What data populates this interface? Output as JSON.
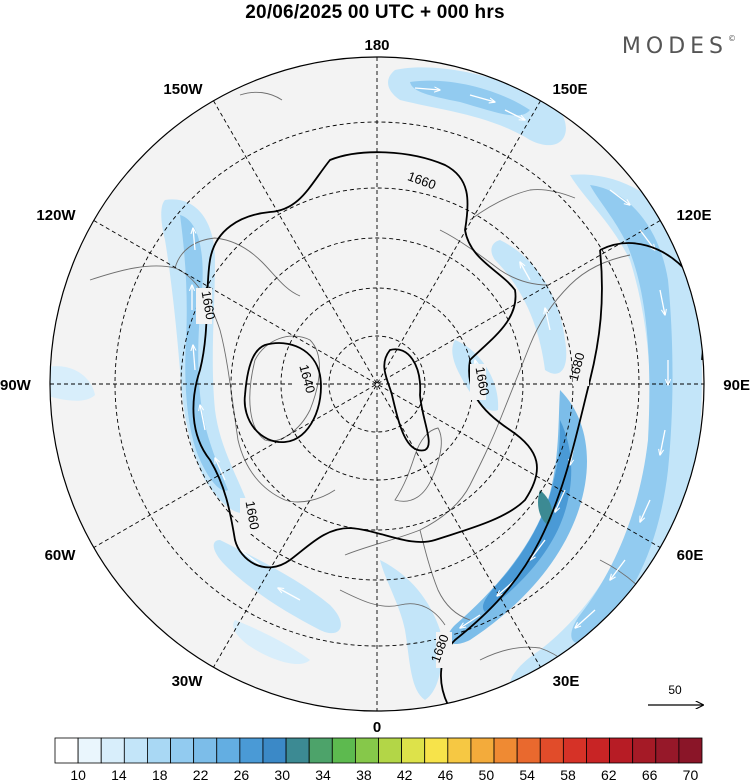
{
  "title": "20/06/2025  00 UTC  + 000 hrs",
  "brand": "MODES",
  "brand_mark": "©",
  "longitude_labels": {
    "top": "180",
    "bottom": "0",
    "left": "90W",
    "right": "90E",
    "upper_left": "150W",
    "upper_left_mid": "120W",
    "upper_right": "150E",
    "upper_right_mid": "120E",
    "lower_left": "60W",
    "lower_left_far": "30W",
    "lower_right": "60E",
    "lower_right_far": "30E"
  },
  "contour_labels": [
    "1660",
    "1660",
    "1640",
    "1660",
    "1660",
    "1680",
    "1680",
    "1660"
  ],
  "vector_scale_label": "50",
  "colorbar": {
    "ticks": [
      "10",
      "14",
      "18",
      "22",
      "26",
      "30",
      "34",
      "38",
      "42",
      "46",
      "50",
      "54",
      "58",
      "62",
      "66",
      "70"
    ],
    "colors": [
      "#ffffff",
      "#eaf6fd",
      "#d8eefb",
      "#c3e5f9",
      "#a9d8f4",
      "#92cbf0",
      "#7cbde9",
      "#63aee2",
      "#4a9ad6",
      "#3b89c7",
      "#3c8a93",
      "#4da36a",
      "#5dba4f",
      "#86c84a",
      "#b3d647",
      "#dde24a",
      "#f7e34a",
      "#f6c843",
      "#f3ab3b",
      "#ef8a33",
      "#e9692e",
      "#e14c2a",
      "#d63227",
      "#c82425",
      "#b71c25",
      "#a51a26",
      "#961829",
      "#8a1528"
    ]
  }
}
